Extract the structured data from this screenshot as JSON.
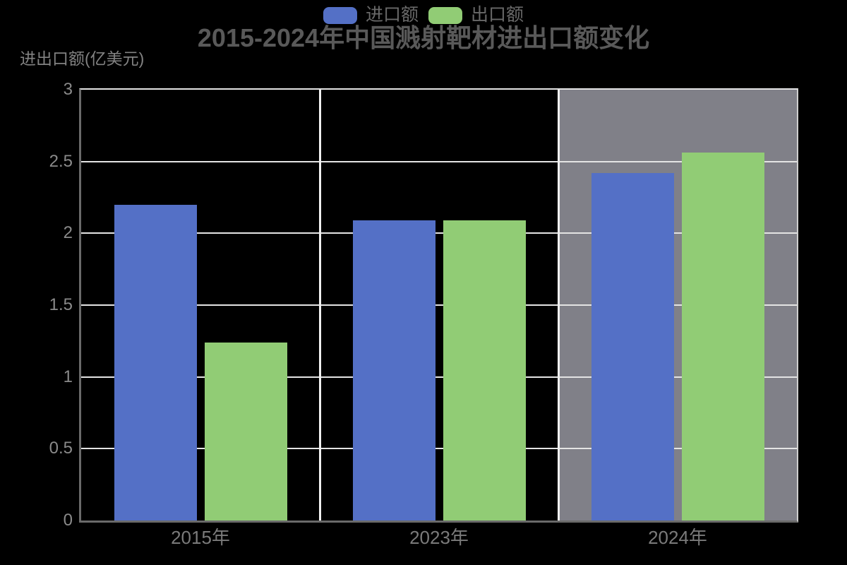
{
  "page": {
    "background": "#000000"
  },
  "chart_data": {
    "type": "bar",
    "title": "2015-2024年中国溅射靶材进出口额变化",
    "ylabel": "进出口额(亿美元)",
    "xlabel": "",
    "categories": [
      "2015年",
      "2023年",
      "2024年"
    ],
    "series": [
      {
        "name": "进口额",
        "color": "#5470c6",
        "values": [
          2.2,
          2.09,
          2.42
        ]
      },
      {
        "name": "出口额",
        "color": "#91cc75",
        "values": [
          1.24,
          2.09,
          2.56
        ]
      }
    ],
    "ylim": [
      0,
      3
    ],
    "y_ticks": [
      0,
      0.5,
      1,
      1.5,
      2,
      2.5,
      3
    ],
    "grid": true,
    "legend_position": "top-center",
    "highlight_category": "2024年",
    "highlight_color": "#808088"
  },
  "colors": {
    "background": "#000000",
    "import_bar": "#5470c6",
    "export_bar": "#91cc75",
    "highlight_band": "#808088",
    "gridline": "#e4e4e4",
    "axis_line": "#6a6a6a",
    "title_text": "#595959",
    "axis_text": "#8a8a8a"
  }
}
